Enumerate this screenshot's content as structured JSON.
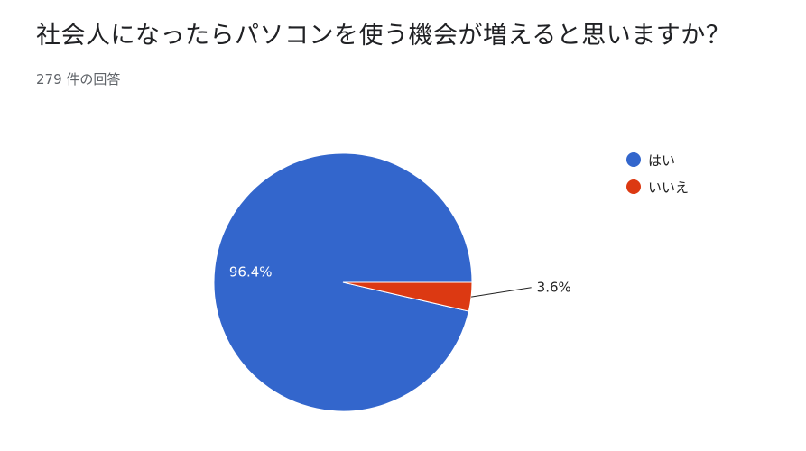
{
  "question": {
    "title": "社会人になったらパソコンを使う機会が増えると思いますか？",
    "response_count": "279 件の回答"
  },
  "legend": {
    "items": [
      {
        "label": "はい",
        "color": "#3366CC"
      },
      {
        "label": "いいえ",
        "color": "#DC3912"
      }
    ]
  },
  "chart_data": {
    "type": "pie",
    "title": "社会人になったらパソコンを使う機会が増えると思いますか？",
    "slices": [
      {
        "label": "はい",
        "value": 96.4,
        "display": "96.4%",
        "color": "#3366CC"
      },
      {
        "label": "いいえ",
        "value": 3.6,
        "display": "3.6%",
        "color": "#DC3912"
      }
    ],
    "legend_position": "right"
  }
}
